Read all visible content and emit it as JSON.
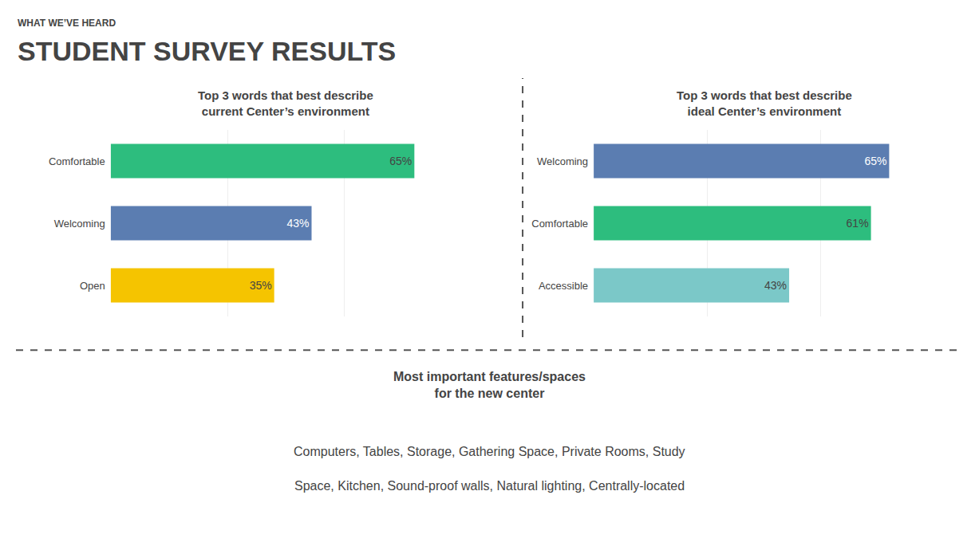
{
  "subtitle": "WHAT WE’VE HEARD",
  "title": "STUDENT SURVEY RESULTS",
  "annotations": [
    "Most important features/spaces\nfor the new center",
    "Computers, Tables, Storage, Gathering Space, Private Rooms, Study",
    "Space, Kitchen, Sound-proof walls, Natural lighting, Centrally-located"
  ],
  "chart_data": [
    {
      "type": "bar",
      "orientation": "horizontal",
      "title": "Top 3 words that best describe\ncurrent Center’s environment",
      "categories": [
        "Open",
        "Welcoming",
        "Comfortable"
      ],
      "values": [
        35,
        43,
        65
      ],
      "value_labels": [
        "35%",
        "43%",
        "65%"
      ],
      "colors": [
        "#F5C400",
        "#5B7DB1",
        "#2DBD7E"
      ],
      "xlim": [
        0,
        75
      ],
      "xticks": [
        0,
        25,
        50,
        75
      ],
      "grid": true,
      "tick_labels": "y",
      "data_labels": true
    },
    {
      "type": "bar",
      "orientation": "horizontal",
      "title": "Top 3 words that best describe\nideal Center’s environment",
      "categories": [
        "Accessible",
        "Comfortable",
        "Welcoming"
      ],
      "values": [
        43,
        61,
        65
      ],
      "value_labels": [
        "43%",
        "61%",
        "65%"
      ],
      "colors": [
        "#7BC8C8",
        "#2DBD7E",
        "#5B7DB1"
      ],
      "xlim": [
        0,
        75
      ],
      "xticks": [
        0,
        25,
        50,
        75
      ],
      "grid": true,
      "tick_labels": "y",
      "data_labels": true
    }
  ]
}
